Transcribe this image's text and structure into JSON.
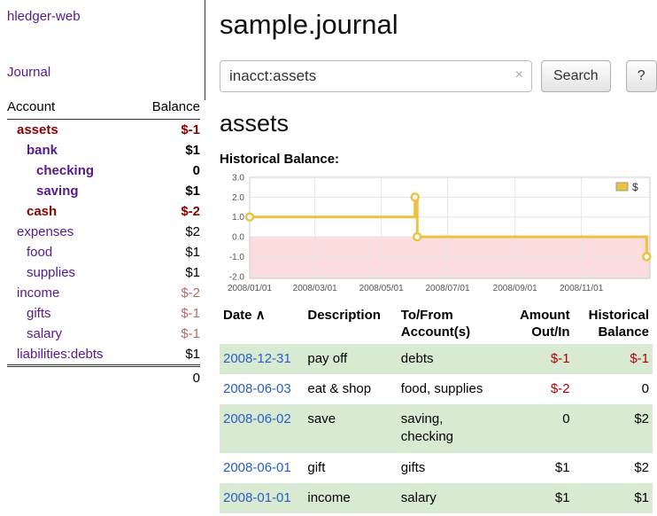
{
  "colors": {
    "link_purple": "#551a8b",
    "link_blue": "#2a5cc8",
    "neg_strong": "#8b0000",
    "neg_muted": "#b36b6b",
    "neg_table": "#b30000",
    "row_green": "#d9ead3",
    "chart_line": "#edc240"
  },
  "sidebar": {
    "app_title": "hledger-web",
    "journal_link": "Journal",
    "accounts_header": {
      "account": "Account",
      "balance": "Balance"
    },
    "accounts": [
      {
        "name": "assets",
        "indent": 1,
        "bold": true,
        "name_color": "#8b0000",
        "balance": "$-1",
        "balance_color": "#8b0000"
      },
      {
        "name": "bank",
        "indent": 2,
        "bold": true,
        "balance": "$1"
      },
      {
        "name": "checking",
        "indent": 3,
        "bold": true,
        "balance": "0"
      },
      {
        "name": "saving",
        "indent": 3,
        "bold": true,
        "balance": "$1"
      },
      {
        "name": "cash",
        "indent": 2,
        "bold": true,
        "name_color": "#8b0000",
        "balance": "$-2",
        "balance_color": "#8b0000"
      },
      {
        "name": "expenses",
        "indent": 1,
        "bold": false,
        "balance": "$2"
      },
      {
        "name": "food",
        "indent": 2,
        "bold": false,
        "balance": "$1"
      },
      {
        "name": "supplies",
        "indent": 2,
        "bold": false,
        "balance": "$1"
      },
      {
        "name": "income",
        "indent": 1,
        "bold": false,
        "balance": "$-2",
        "balance_color": "#b36b6b"
      },
      {
        "name": "gifts",
        "indent": 2,
        "bold": false,
        "balance": "$-1",
        "balance_color": "#b36b6b"
      },
      {
        "name": "salary",
        "indent": 2,
        "bold": false,
        "balance": "$-1",
        "balance_color": "#b36b6b"
      },
      {
        "name": "liabilities:debts",
        "indent": 1,
        "bold": false,
        "balance": "$1"
      }
    ],
    "total": "0"
  },
  "main": {
    "title": "sample.journal",
    "search": {
      "value": "inacct:assets",
      "clear_icon": "×",
      "button": "Search",
      "help_button": "?"
    },
    "account_heading": "assets"
  },
  "chart_data": {
    "type": "line",
    "title": "Historical Balance:",
    "step": true,
    "x_range": [
      "2008-01-01",
      "2009-01-03"
    ],
    "y_range": [
      -2.1,
      3.0
    ],
    "y_ticks": [
      3.0,
      2.0,
      1.0,
      0.0,
      -1.0,
      -2.0
    ],
    "x_ticks": [
      {
        "label": "2008/01/01",
        "date": "2008-01-01"
      },
      {
        "label": "2008/03/01",
        "date": "2008-03-01"
      },
      {
        "label": "2008/05/01",
        "date": "2008-05-01"
      },
      {
        "label": "2008/07/01",
        "date": "2008-07-01"
      },
      {
        "label": "2008/09/01",
        "date": "2008-09-01"
      },
      {
        "label": "2008/11/01",
        "date": "2008-11-01"
      }
    ],
    "series": [
      {
        "name": "$",
        "color": "#edc240",
        "points": [
          {
            "x": "2008-01-01",
            "y": 1
          },
          {
            "x": "2008-06-01",
            "y": 2
          },
          {
            "x": "2008-06-03",
            "y": 0
          },
          {
            "x": "2008-12-31",
            "y": -1
          }
        ]
      }
    ],
    "negative_fill": "#fbdddd",
    "grid_color": "#e6e6e6",
    "border_color": "#cccccc",
    "legend_position": "top-right"
  },
  "register": {
    "sort_icon": "∧",
    "headers": [
      {
        "key": "date",
        "lines": [
          "Date"
        ],
        "align": "left",
        "sortable": true
      },
      {
        "key": "description",
        "lines": [
          "Description"
        ],
        "align": "left",
        "sortable": false
      },
      {
        "key": "accounts",
        "lines": [
          "To/From",
          "Account(s)"
        ],
        "align": "left",
        "sortable": false
      },
      {
        "key": "amount",
        "lines": [
          "Amount",
          "Out/In"
        ],
        "align": "right",
        "sortable": false
      },
      {
        "key": "balance",
        "lines": [
          "Historical",
          "Balance"
        ],
        "align": "right",
        "sortable": false
      }
    ],
    "rows": [
      {
        "date": "2008-12-31",
        "description": "pay off",
        "accounts": "debts",
        "amount": "$-1",
        "amount_color": "#b30000",
        "balance": "$-1",
        "balance_color": "#b30000"
      },
      {
        "date": "2008-06-03",
        "description": "eat & shop",
        "accounts": "food, supplies",
        "amount": "$-2",
        "amount_color": "#b30000",
        "balance": "0"
      },
      {
        "date": "2008-06-02",
        "description": "save",
        "accounts": "saving, checking",
        "amount": "0",
        "balance": "$2"
      },
      {
        "date": "2008-06-01",
        "description": "gift",
        "accounts": "gifts",
        "amount": "$1",
        "balance": "$2"
      },
      {
        "date": "2008-01-01",
        "description": "income",
        "accounts": "salary",
        "amount": "$1",
        "balance": "$1"
      }
    ]
  }
}
